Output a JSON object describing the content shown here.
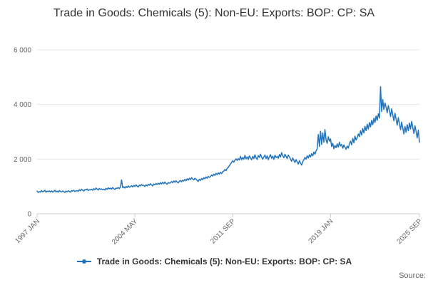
{
  "title": "Trade in Goods: Chemicals (5): Non-EU: Exports: BOP: CP: SA",
  "legend": {
    "label": "Trade in Goods: Chemicals (5): Non-EU: Exports: BOP: CP: SA"
  },
  "source": {
    "label": "Source:"
  },
  "colors": {
    "series": "#2073bc",
    "grid": "#e6e6e6",
    "axis": "#cccccc",
    "tick_text": "#666666",
    "title_text": "#333333"
  },
  "chart_data": {
    "type": "line",
    "title": "Trade in Goods: Chemicals (5): Non-EU: Exports: BOP: CP: SA",
    "xlabel": "",
    "ylabel": "",
    "frequency": "monthly",
    "x_start": "1997 JAN",
    "x_end": "2025 SEP",
    "ylim": [
      0,
      6000
    ],
    "grid": true,
    "legend_position": "bottom",
    "y_ticks": [
      {
        "value": 0,
        "label": "0"
      },
      {
        "value": 2000,
        "label": "2 000"
      },
      {
        "value": 4000,
        "label": "4 000"
      },
      {
        "value": 6000,
        "label": "6 000"
      }
    ],
    "x_ticks": [
      {
        "index": 0,
        "label": "1997 JAN"
      },
      {
        "index": 88,
        "label": "2004 MAY"
      },
      {
        "index": 176,
        "label": "2011 SEP"
      },
      {
        "index": 264,
        "label": "2019 JAN"
      },
      {
        "index": 344,
        "label": "2025 SEP"
      }
    ],
    "series": [
      {
        "name": "Trade in Goods: Chemicals (5): Non-EU: Exports: BOP: CP: SA",
        "color": "#2073bc",
        "values": [
          830,
          780,
          810,
          790,
          850,
          800,
          820,
          860,
          790,
          830,
          810,
          840,
          800,
          840,
          790,
          820,
          860,
          800,
          830,
          790,
          850,
          820,
          800,
          830,
          810,
          780,
          830,
          800,
          840,
          820,
          790,
          850,
          830,
          860,
          810,
          840,
          850,
          820,
          880,
          840,
          900,
          860,
          830,
          890,
          870,
          910,
          850,
          880,
          870,
          900,
          860,
          920,
          880,
          940,
          900,
          870,
          930,
          890,
          910,
          880,
          900,
          870,
          930,
          890,
          950,
          910,
          940,
          900,
          960,
          920,
          890,
          940,
          930,
          960,
          920,
          980,
          1240,
          950,
          990,
          940,
          1000,
          960,
          1020,
          970,
          990,
          1030,
          980,
          1040,
          1000,
          1060,
          1010,
          980,
          1050,
          1020,
          1070,
          1030,
          1040,
          1000,
          1060,
          1020,
          1080,
          1040,
          1100,
          1050,
          1020,
          1090,
          1060,
          1110,
          1070,
          1120,
          1080,
          1140,
          1090,
          1150,
          1100,
          1160,
          1110,
          1080,
          1140,
          1120,
          1130,
          1180,
          1140,
          1200,
          1150,
          1210,
          1160,
          1130,
          1190,
          1220,
          1170,
          1230,
          1200,
          1260,
          1210,
          1280,
          1230,
          1300,
          1250,
          1320,
          1270,
          1240,
          1300,
          1260,
          1230,
          1180,
          1260,
          1220,
          1290,
          1250,
          1320,
          1280,
          1350,
          1300,
          1370,
          1330,
          1360,
          1420,
          1380,
          1450,
          1400,
          1480,
          1430,
          1500,
          1450,
          1520,
          1470,
          1540,
          1560,
          1620,
          1580,
          1660,
          1700,
          1760,
          1820,
          1880,
          1940,
          1890,
          1960,
          2010,
          1950,
          2020,
          1970,
          2100,
          1980,
          2060,
          2000,
          2140,
          2010,
          2080,
          1990,
          2120,
          2040,
          1980,
          2100,
          2020,
          2160,
          2050,
          1990,
          2130,
          2060,
          2180,
          2070,
          2000,
          2080,
          2150,
          2020,
          2120,
          1980,
          2090,
          2160,
          2030,
          2110,
          1990,
          2140,
          2060,
          2100,
          2030,
          2170,
          2080,
          2240,
          2120,
          2050,
          2180,
          2100,
          2020,
          2150,
          2080,
          2000,
          1920,
          2040,
          1960,
          1880,
          1980,
          1900,
          1820,
          1940,
          1860,
          1780,
          1900,
          1980,
          2060,
          2000,
          2120,
          2040,
          2160,
          2080,
          2200,
          2120,
          2260,
          2180,
          2300,
          2380,
          2900,
          2460,
          3020,
          2540,
          2960,
          2620,
          3080,
          2700,
          2580,
          2820,
          2660,
          2740,
          2460,
          2580,
          2380,
          2500,
          2420,
          2560,
          2440,
          2620,
          2480,
          2540,
          2400,
          2520,
          2440,
          2360,
          2480,
          2400,
          2560,
          2660,
          2520,
          2760,
          2600,
          2840,
          2700,
          2780,
          2920,
          2820,
          3040,
          2880,
          3120,
          2960,
          3200,
          3040,
          3280,
          3100,
          3340,
          3180,
          3420,
          3260,
          3500,
          3340,
          3580,
          3420,
          3660,
          3500,
          4650,
          3740,
          4180,
          3820,
          4060,
          3900,
          3700,
          3960,
          3780,
          3560,
          3840,
          3620,
          3400,
          3680,
          3460,
          3240,
          3520,
          3300,
          3080,
          3360,
          3140,
          2920,
          3200,
          2980,
          3260,
          3040,
          3320,
          3100,
          3380,
          3160,
          2940,
          3220,
          3000,
          2780,
          3060,
          2620
        ]
      }
    ]
  }
}
